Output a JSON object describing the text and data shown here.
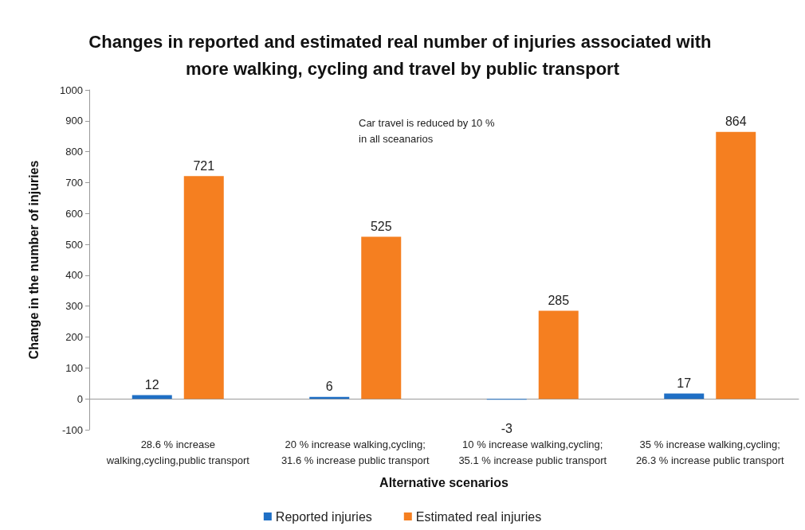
{
  "chart_data": {
    "type": "bar",
    "title": "Changes in reported and estimated real number of injuries associated with more walking, cycling and travel by public transport",
    "xlabel": "Alternative scenarios",
    "ylabel": "Change in the number of injuries",
    "categories": [
      "28.6 % increase\nwalking,cycling,public transport",
      "20 % increase walking,cycling;\n31.6 % increase public transport",
      "10 % increase walking,cycling;\n35.1 % increase public transport",
      "35 % increase walking,cycling;\n26.3 % increase public transport"
    ],
    "series": [
      {
        "name": "Reported injuries",
        "color": "#1f6fc5",
        "values": [
          12,
          6,
          -3,
          17
        ]
      },
      {
        "name": "Estimated real injuries",
        "color": "#f57f20",
        "values": [
          721,
          525,
          285,
          864
        ]
      }
    ],
    "ylim": [
      -100,
      1000
    ],
    "yticks": [
      -100,
      0,
      100,
      200,
      300,
      400,
      500,
      600,
      700,
      800,
      900,
      1000
    ],
    "legend": "bottom",
    "data_labels": true,
    "annotations": [
      "Car travel is reduced by 10 %\nin all sceanarios"
    ]
  }
}
